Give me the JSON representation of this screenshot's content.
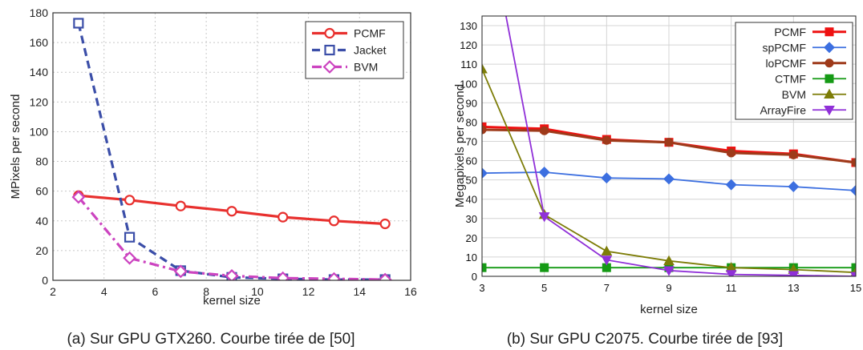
{
  "chart_data": [
    {
      "type": "line",
      "caption": "(a)  Sur GPU GTX260. Courbe tirée de [50]",
      "xlabel": "kernel size",
      "ylabel": "MPixels per second",
      "xlim": [
        2,
        16
      ],
      "ylim": [
        0,
        180
      ],
      "xticks": [
        2,
        4,
        6,
        8,
        10,
        12,
        14,
        16
      ],
      "yticks": [
        0,
        20,
        40,
        60,
        80,
        100,
        120,
        140,
        160,
        180
      ],
      "legend_position": "top-right",
      "grid": true,
      "x": [
        3,
        5,
        7,
        9,
        11,
        13,
        15
      ],
      "series": [
        {
          "name": "PCMF",
          "color": "#e8302e",
          "dash": "solid",
          "marker": "circle",
          "values": [
            57,
            54,
            50,
            46.5,
            42.5,
            40,
            38
          ]
        },
        {
          "name": "Jacket",
          "color": "#3b4ea8",
          "dash": "dashed",
          "marker": "square",
          "values": [
            173,
            29,
            6.5,
            2,
            1,
            0.5,
            0.5
          ]
        },
        {
          "name": "BVM",
          "color": "#cc44c0",
          "dash": "dashdot",
          "marker": "diamond",
          "values": [
            56,
            15,
            6,
            3,
            1.5,
            1,
            0.5
          ]
        }
      ]
    },
    {
      "type": "line",
      "caption": "(b)  Sur GPU C2075. Courbe tirée de [93]",
      "xlabel": "kernel size",
      "ylabel": "Megapixels per second",
      "xlim": [
        3,
        15
      ],
      "ylim": [
        0,
        135
      ],
      "xticks": [
        3,
        5,
        7,
        9,
        11,
        13,
        15
      ],
      "yticks": [
        0,
        10,
        20,
        30,
        40,
        50,
        60,
        70,
        80,
        90,
        100,
        110,
        120,
        130
      ],
      "legend_position": "top-right",
      "grid": true,
      "x": [
        3,
        5,
        7,
        9,
        11,
        13,
        15
      ],
      "series": [
        {
          "name": "PCMF",
          "color": "#ee1111",
          "marker": "square",
          "values": [
            77.5,
            76.5,
            71,
            69.5,
            65,
            63.5,
            59
          ]
        },
        {
          "name": "spPCMF",
          "color": "#3c6fe0",
          "marker": "diamond",
          "values": [
            53.5,
            54,
            51,
            50.5,
            47.5,
            46.5,
            44.5
          ]
        },
        {
          "name": "loPCMF",
          "color": "#9e3a1a",
          "marker": "circle",
          "values": [
            76,
            75.5,
            70.5,
            69.5,
            64,
            63,
            59
          ]
        },
        {
          "name": "CTMF",
          "color": "#159a15",
          "marker": "square",
          "values": [
            4.5,
            4.5,
            4.5,
            4.5,
            4.5,
            4.5,
            4.5
          ]
        },
        {
          "name": "BVM",
          "color": "#7d7d08",
          "marker": "triangle-up",
          "values": [
            107.5,
            32,
            13,
            8,
            4.5,
            3.5,
            2
          ]
        },
        {
          "name": "ArrayFire",
          "color": "#9030d8",
          "marker": "triangle-down",
          "values": [
            200,
            31,
            8.5,
            3,
            1,
            0.5,
            0
          ]
        }
      ]
    }
  ]
}
